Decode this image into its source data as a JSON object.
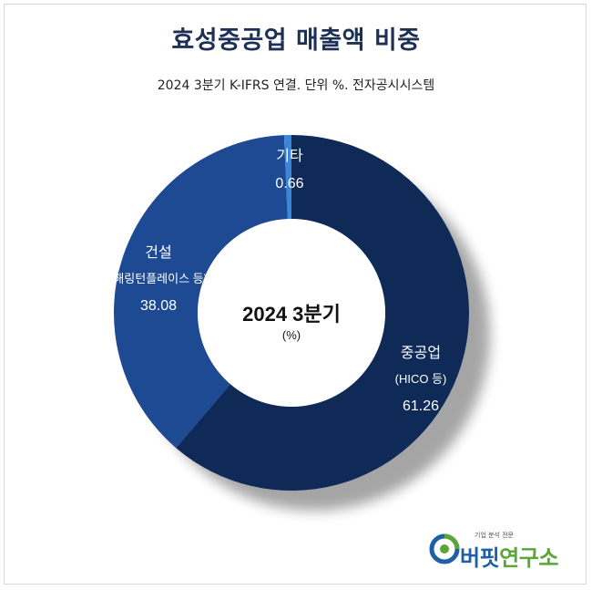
{
  "title": "효성중공업 매출액 비중",
  "subtitle": "2024 3분기 K-IFRS 연결. 단위 %. 전자공시시스템",
  "chart_data": {
    "type": "pie",
    "subtype": "donut",
    "center_label": "2024 3분기",
    "center_unit": "(%)",
    "slices": [
      {
        "label": "중공업",
        "sublabel": "(HICO 등)",
        "value": 61.26,
        "value_text": "61.26",
        "color": "#0f2a57"
      },
      {
        "label": "건설",
        "sublabel": "(해링턴플레이스 등)",
        "value": 38.08,
        "value_text": "38.08",
        "color": "#1e4a93"
      },
      {
        "label": "기타",
        "sublabel": "",
        "value": 0.66,
        "value_text": "0.66",
        "color": "#3b86d8"
      }
    ]
  },
  "logo": {
    "tagline": "기업 분석 전문",
    "name_part1": "버핏",
    "name_part2": "연구소",
    "colors": {
      "blue": "#1f5fa8",
      "green": "#5aa637"
    }
  }
}
